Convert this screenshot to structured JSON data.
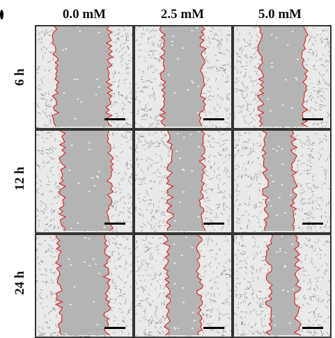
{
  "figure": {
    "column_labels": [
      "0.0 mM",
      "2.5 mM",
      "5.0 mM"
    ],
    "row_labels": [
      "6 h",
      "12 h",
      "24 h"
    ],
    "panels": [
      {
        "row": 0,
        "col": 0,
        "gap_fraction": 0.56
      },
      {
        "row": 0,
        "col": 1,
        "gap_fraction": 0.42
      },
      {
        "row": 0,
        "col": 2,
        "gap_fraction": 0.46
      },
      {
        "row": 1,
        "col": 0,
        "gap_fraction": 0.5
      },
      {
        "row": 1,
        "col": 1,
        "gap_fraction": 0.34
      },
      {
        "row": 1,
        "col": 2,
        "gap_fraction": 0.3
      },
      {
        "row": 2,
        "col": 0,
        "gap_fraction": 0.5
      },
      {
        "row": 2,
        "col": 1,
        "gap_fraction": 0.34
      },
      {
        "row": 2,
        "col": 2,
        "gap_fraction": 0.3
      }
    ],
    "colors": {
      "wound_border": "#e0201c",
      "gap_fill": "#b4b4b4",
      "cell_field": "#e9e9e9",
      "cell_marks": "#3a3a3a",
      "scale_bar": "#000000"
    }
  }
}
